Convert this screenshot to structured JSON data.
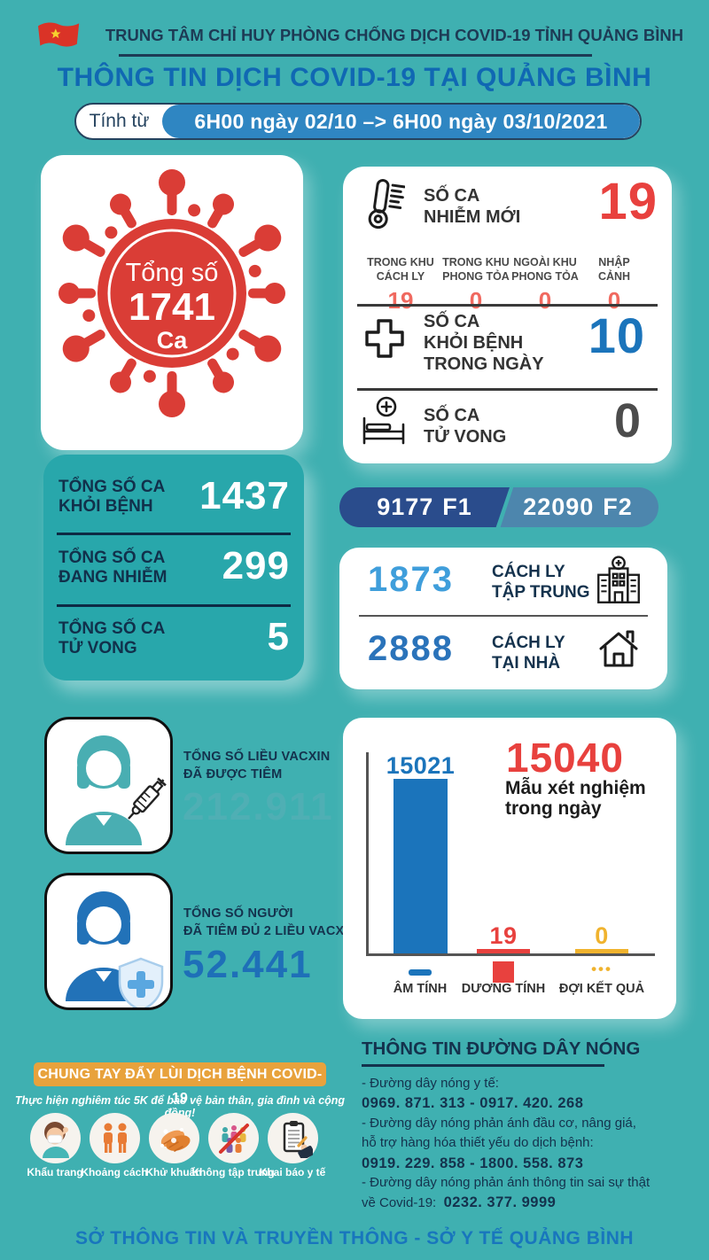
{
  "colors": {
    "background_teal": "#3fb0b1",
    "navy_text": "#14324d",
    "title_blue": "#1068b3",
    "period_blue": "#2f86c2",
    "red": "#e8413e",
    "salmon_red": "#f0695f",
    "blue_number": "#1b74bb",
    "gray_number": "#4c4c4c",
    "totals_teal": "#28a7ab",
    "f1_navy": "#2a4c8c",
    "f2_steel": "#4d86ad",
    "quarantine_light_blue": "#3f9edb",
    "quarantine_blue": "#2a73ba",
    "vaccine_teal": "#4fafb4",
    "vaccine_blue": "#1e6fb8",
    "banner_orange": "#e8a23c",
    "chart_yellow": "#f0b32e",
    "footer_blue": "#1876bd",
    "virus_red": "#da3d36"
  },
  "header": {
    "org": "TRUNG TÂM CHỈ HUY PHÒNG CHỐNG DỊCH COVID-19 TỈNH QUẢNG BÌNH",
    "title": "THÔNG TIN DỊCH COVID-19 TẠI QUẢNG BÌNH",
    "period_label": "Tính từ",
    "period_value": "6H00 ngày 02/10 –> 6H00 ngày 03/10/2021",
    "flag_icon": "vietnam-flag-icon"
  },
  "total_cases": {
    "label": "Tổng số",
    "value": "1741",
    "unit": "Ca"
  },
  "daily": {
    "new_cases": {
      "icon": "thermometer-icon",
      "label1": "SỐ CA",
      "label2": "NHIỄM MỚI",
      "value": "19",
      "breakdown": [
        {
          "label1": "TRONG KHU",
          "label2": "CÁCH LY",
          "value": "19"
        },
        {
          "label1": "TRONG KHU",
          "label2": "PHONG TỎA",
          "value": "0"
        },
        {
          "label1": "NGOÀI KHU",
          "label2": "PHONG TỎA",
          "value": "0"
        },
        {
          "label1": "NHẬP",
          "label2": "CẢNH",
          "value": "0"
        }
      ]
    },
    "recovered": {
      "icon": "medical-cross-icon",
      "label1": "SỐ CA",
      "label2": "KHỎI BỆNH",
      "label3": "TRONG NGÀY",
      "value": "10"
    },
    "deaths": {
      "icon": "hospital-bed-icon",
      "label1": "SỐ CA",
      "label2": "TỬ VONG",
      "value": "0"
    }
  },
  "totals": {
    "rows": [
      {
        "label1": "TỔNG SỐ CA",
        "label2": "KHỎI BỆNH",
        "value": "1437"
      },
      {
        "label1": "TỔNG SỐ CA",
        "label2": "ĐANG NHIỄM",
        "value": "299"
      },
      {
        "label1": "TỔNG SỐ CA",
        "label2": "TỬ VONG",
        "value": "5"
      }
    ]
  },
  "contacts": {
    "f1_value": "9177",
    "f1_label": "F1",
    "f2_value": "22090",
    "f2_label": "F2"
  },
  "quarantine": {
    "rows": [
      {
        "value": "1873",
        "label1": "CÁCH LY",
        "label2": "TẬP TRUNG",
        "icon": "hospital-building-icon"
      },
      {
        "value": "2888",
        "label1": "CÁCH LY",
        "label2": "TẠI NHÀ",
        "icon": "home-icon"
      }
    ]
  },
  "vaccine": {
    "boxes": [
      {
        "icon": "nurse-syringe-icon",
        "label1": "TỔNG SỐ LIỀU VACXIN",
        "label2": "ĐÃ ĐƯỢC TIÊM",
        "value": "212.911"
      },
      {
        "icon": "person-shield-icon",
        "label1": "TỔNG SỐ NGƯỜI",
        "label2": "ĐÃ TIÊM ĐỦ 2 LIỀU VACXIN",
        "value": "52.441"
      }
    ]
  },
  "chart_data": {
    "type": "bar",
    "title_value": "15040",
    "title_label_line1": "Mẫu xét nghiệm",
    "title_label_line2": "trong ngày",
    "categories": [
      "ÂM TÍNH",
      "DƯƠNG TÍNH",
      "ĐỢI KẾT QUẢ"
    ],
    "values": [
      15021,
      19,
      0
    ],
    "value_labels": [
      "15021",
      "19",
      "0"
    ],
    "symbols": [
      "−",
      "+",
      "•••"
    ],
    "colors": [
      "#1b74bb",
      "#e8413e",
      "#f0b32e"
    ],
    "ylim": [
      0,
      15021
    ],
    "grid": false,
    "legend_position": "none",
    "axis_color": "#555555"
  },
  "five_k": {
    "banner": "CHUNG TAY ĐẨY LÙI DỊCH BỆNH COVID-19",
    "subtitle": "Thực hiện nghiêm túc 5K để bảo vệ bản thân, gia đình và cộng đồng!",
    "items": [
      {
        "label": "Khẩu trang",
        "icon": "face-mask-icon"
      },
      {
        "label": "Khoảng cách",
        "icon": "distance-icon"
      },
      {
        "label": "Khử khuẩn",
        "icon": "hand-washing-icon"
      },
      {
        "label": "Không tập trung",
        "icon": "no-gathering-icon"
      },
      {
        "label": "Khai báo y tế",
        "icon": "health-declaration-icon"
      }
    ]
  },
  "hotline": {
    "title": "THÔNG TIN ĐƯỜNG DÂY NÓNG",
    "lines": [
      {
        "text": "- Đường dây nóng y tế:",
        "bold": false
      },
      {
        "text": "0969. 871. 313   -   0917. 420. 268",
        "bold": true
      },
      {
        "text": "- Đường dây nóng phản ánh đầu cơ, nâng giá,",
        "bold": false
      },
      {
        "text": "hỗ trợ hàng hóa thiết yếu do dịch bệnh:",
        "bold": false
      },
      {
        "text": "0919. 229. 858  -  1800. 558. 873",
        "bold": true
      },
      {
        "text": "- Đường dây nóng phản ánh thông tin sai sự thật",
        "bold": false
      }
    ],
    "last_line_prefix": "về Covid-19:",
    "last_line_number": "0232. 377. 9999"
  },
  "footer": "SỞ THÔNG TIN VÀ TRUYỀN THÔNG - SỞ Y TẾ QUẢNG BÌNH"
}
